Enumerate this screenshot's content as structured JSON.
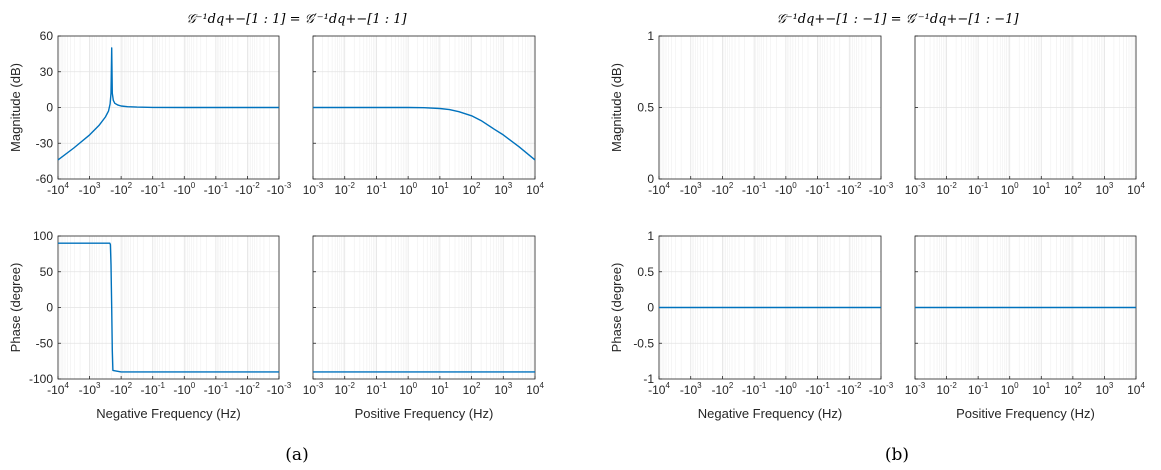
{
  "figure": {
    "captions": [
      "(a)",
      "(b)"
    ]
  },
  "colors": {
    "line": "#0072BD",
    "grid": "#e3e3e3",
    "axis": "#262626"
  },
  "chart_data": [
    {
      "id": "a",
      "type": "line",
      "title": "𝒢⁻¹dq+−[1 : 1] = 𝒢′⁻¹dq+−[1 : 1]",
      "neg_xlabel": "Negative Frequency (Hz)",
      "pos_xlabel": "Positive Frequency (Hz)",
      "neg_xticks": [
        "-10^4",
        "-10^3",
        "-10^2",
        "-10^-1",
        "-10^0",
        "-10^-1",
        "-10^-2",
        "-10^-3"
      ],
      "pos_xticks": [
        "10^-3",
        "10^-2",
        "10^-1",
        "10^0",
        "10^1",
        "10^2",
        "10^3",
        "10^4"
      ],
      "xscale": "log",
      "grid": true,
      "magnitude": {
        "ylabel": "Magnitude (dB)",
        "ylim": [
          -60,
          60
        ],
        "yticks": [
          "-60",
          "-30",
          "0",
          "30",
          "60"
        ],
        "yvals": [
          -60,
          -30,
          0,
          30,
          60
        ],
        "neg_series": {
          "x_log10_abs": [
            4,
            3.5,
            3,
            2.7,
            2.5,
            2.4,
            2.35,
            2.32,
            2.3,
            2.28,
            2.25,
            2.2,
            2.1,
            2.0,
            1.8,
            1.5,
            1,
            0,
            -1,
            -3
          ],
          "y": [
            -44,
            -34,
            -23,
            -15,
            -8,
            -3,
            3,
            12,
            50,
            12,
            6,
            3.5,
            2,
            1.3,
            0.7,
            0.3,
            0.1,
            0,
            0,
            0
          ]
        },
        "pos_series": {
          "x_log10": [
            -3,
            -1,
            0,
            0.5,
            1,
            1.3,
            1.6,
            2,
            2.3,
            2.7,
            3,
            3.5,
            4
          ],
          "y": [
            0,
            0,
            0,
            -0.2,
            -0.8,
            -1.8,
            -3.5,
            -7,
            -11,
            -18,
            -23,
            -33,
            -44
          ]
        }
      },
      "phase": {
        "ylabel": "Phase (degree)",
        "ylim": [
          -100,
          100
        ],
        "yticks": [
          "-100",
          "-50",
          "0",
          "50",
          "100"
        ],
        "yvals": [
          -100,
          -50,
          0,
          50,
          100
        ],
        "neg_series": {
          "x_log10_abs": [
            4,
            3,
            2.5,
            2.36,
            2.34,
            2.32,
            2.3,
            2.28,
            2.26,
            2,
            1,
            0,
            -1,
            -2,
            -3
          ],
          "y": [
            90,
            90,
            90,
            90,
            88,
            60,
            0,
            -60,
            -88,
            -90,
            -90,
            -90,
            -90,
            -90,
            -90
          ]
        },
        "pos_series": {
          "x_log10": [
            -3,
            4
          ],
          "y": [
            -90,
            -90
          ]
        }
      }
    },
    {
      "id": "b",
      "type": "line",
      "title": "𝒢⁻¹dq+−[1 : −1] = 𝒢′⁻¹dq+−[1 : −1]",
      "neg_xlabel": "Negative Frequency (Hz)",
      "pos_xlabel": "Positive Frequency (Hz)",
      "neg_xticks": [
        "-10^4",
        "-10^3",
        "-10^2",
        "-10^-1",
        "-10^0",
        "-10^-1",
        "-10^-2",
        "-10^-3"
      ],
      "pos_xticks": [
        "10^-3",
        "10^-2",
        "10^-1",
        "10^0",
        "10^1",
        "10^2",
        "10^3",
        "10^4"
      ],
      "xscale": "log",
      "grid": true,
      "magnitude": {
        "ylabel": "Magnitude (dB)",
        "ylim": [
          0,
          1
        ],
        "yticks": [
          "0",
          "0.5",
          "1"
        ],
        "yvals": [
          0,
          0.5,
          1
        ],
        "neg_series": null,
        "pos_series": null
      },
      "phase": {
        "ylabel": "Phase (degree)",
        "ylim": [
          -1,
          1
        ],
        "yticks": [
          "-1",
          "-0.5",
          "0",
          "0.5",
          "1"
        ],
        "yvals": [
          -1,
          -0.5,
          0,
          0.5,
          1
        ],
        "neg_series": {
          "x_log10_abs": [
            4,
            -3
          ],
          "y": [
            0,
            0
          ]
        },
        "pos_series": {
          "x_log10": [
            -3,
            4
          ],
          "y": [
            0,
            0
          ]
        }
      }
    }
  ]
}
